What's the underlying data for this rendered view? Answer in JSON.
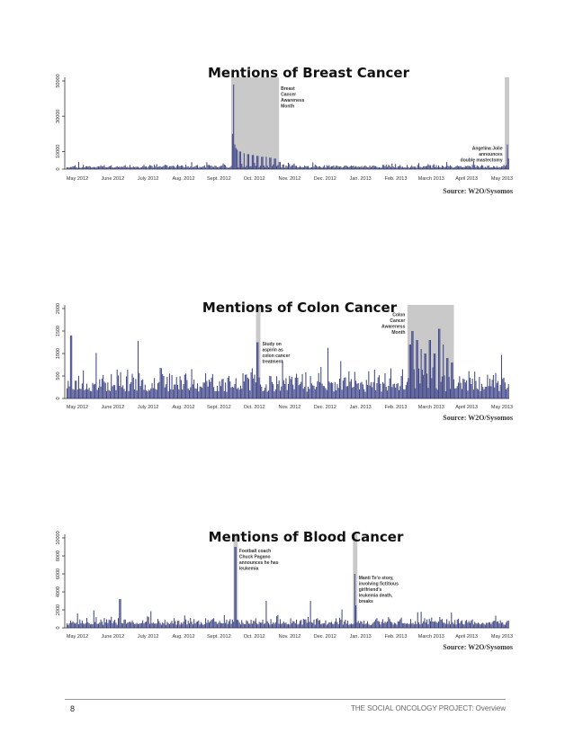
{
  "footer": {
    "page_number": "8",
    "doc_title": "THE SOCIAL ONCOLOGY PROJECT: Overview"
  },
  "colors": {
    "bar": "#40468a",
    "bar_stroke": "#5a62a8",
    "highlight": "#c9c9c9",
    "axis": "#333333"
  },
  "chart_data": [
    {
      "type": "bar",
      "title": "Mentions of Breast Cancer",
      "source": "Source: W2O/Sysomos",
      "ylim": [
        0,
        50000
      ],
      "yticks": [
        "0",
        "10000",
        "30000",
        "50000"
      ],
      "ytick_values": [
        0,
        10000,
        30000,
        50000
      ],
      "categories": [
        "May 2012",
        "June 2012",
        "July 2012",
        "Aug. 2012",
        "Sept. 2012",
        "Oct. 2012",
        "Nov. 2012",
        "Dec. 2012",
        "Jan. 2013",
        "Feb. 2013",
        "March 2013",
        "April 2013",
        "May 2013"
      ],
      "baseline": 2200,
      "noise": 1600,
      "seed": 11,
      "spikes": [
        [
          0.375,
          20000
        ],
        [
          0.376,
          48000
        ],
        [
          0.378,
          14000
        ],
        [
          0.38,
          12000
        ],
        [
          0.384,
          11000
        ],
        [
          0.39,
          10000
        ],
        [
          0.4,
          9000
        ],
        [
          0.41,
          8500
        ],
        [
          0.42,
          8000
        ],
        [
          0.43,
          7500
        ],
        [
          0.44,
          7000
        ],
        [
          0.45,
          7000
        ],
        [
          0.46,
          6500
        ],
        [
          0.47,
          6000
        ],
        [
          0.48,
          4000
        ],
        [
          0.995,
          14000
        ],
        [
          0.998,
          6000
        ]
      ],
      "highlights": [
        [
          0.372,
          0.48
        ],
        [
          0.99,
          1.0
        ]
      ],
      "annotations": [
        {
          "lines": [
            "Breast",
            "Cancer",
            "Awareness",
            "Month"
          ],
          "pos": 0.484,
          "y": 48000,
          "align": "start"
        },
        {
          "lines": [
            "Angelina Jolie",
            "announces",
            "double mastectomy"
          ],
          "pos": 0.985,
          "y": 14000,
          "align": "end"
        }
      ]
    },
    {
      "type": "bar",
      "title": "Mentions of Colon Cancer",
      "source": "Source: W2O/Sysomos",
      "ylim": [
        0,
        2000
      ],
      "yticks": [
        "0",
        "500",
        "1000",
        "1500",
        "2000"
      ],
      "ytick_values": [
        0,
        500,
        1000,
        1500,
        2000
      ],
      "categories": [
        "May 2012",
        "June 2012",
        "July 2012",
        "Aug. 2012",
        "Sept. 2012",
        "Oct. 2012",
        "Nov. 2012",
        "Dec. 2012",
        "Jan. 2013",
        "Feb. 2013",
        "March 2013",
        "April 2013",
        "May 2013"
      ],
      "baseline": 420,
      "noise": 420,
      "seed": 23,
      "spikes": [
        [
          0.01,
          1400
        ],
        [
          0.43,
          1250
        ],
        [
          0.775,
          1200
        ],
        [
          0.78,
          1500
        ],
        [
          0.79,
          1300
        ],
        [
          0.8,
          1100
        ],
        [
          0.81,
          1000
        ],
        [
          0.82,
          1300
        ],
        [
          0.83,
          1000
        ],
        [
          0.84,
          1550
        ],
        [
          0.85,
          1200
        ],
        [
          0.86,
          900
        ],
        [
          0.87,
          800
        ]
      ],
      "highlights": [
        [
          0.428,
          0.438
        ],
        [
          0.77,
          0.875
        ]
      ],
      "annotations": [
        {
          "lines": [
            "Study on",
            "aspirin as",
            "colon cancer",
            "treatment"
          ],
          "pos": 0.442,
          "y": 1300,
          "align": "start"
        },
        {
          "lines": [
            "Colon",
            "Cancer",
            "Awareness",
            "Month"
          ],
          "pos": 0.765,
          "y": 1950,
          "align": "end"
        }
      ]
    },
    {
      "type": "bar",
      "title": "Mentions of Blood Cancer",
      "source": "Source: W2O/Sysomos",
      "ylim": [
        0,
        10000
      ],
      "yticks": [
        "0",
        "2000",
        "4000",
        "6000",
        "8000",
        "10000"
      ],
      "ytick_values": [
        0,
        2000,
        4000,
        6000,
        8000,
        10000
      ],
      "categories": [
        "May 2012",
        "June 2012",
        "July 2012",
        "Aug. 2012",
        "Sept. 2012",
        "Oct. 2012",
        "Nov. 2012",
        "Dec. 2012",
        "Jan. 2013",
        "Feb. 2013",
        "March 2013",
        "April 2013",
        "May 2013"
      ],
      "baseline": 900,
      "noise": 700,
      "seed": 37,
      "spikes": [
        [
          0.38,
          9000
        ],
        [
          0.381,
          3000
        ],
        [
          0.65,
          6000
        ],
        [
          0.651,
          2500
        ],
        [
          0.12,
          3200
        ],
        [
          0.55,
          3000
        ],
        [
          0.45,
          3000
        ]
      ],
      "highlights": [
        [
          0.377,
          0.387
        ],
        [
          0.647,
          0.657
        ]
      ],
      "annotations": [
        {
          "lines": [
            "Football coach",
            "Chuck Pagano",
            "announces he has",
            "leukemia"
          ],
          "pos": 0.39,
          "y": 9000,
          "align": "start"
        },
        {
          "lines": [
            "Manti Te'o story,",
            "involving fictitious",
            "girlfriend's",
            "leukemia death,",
            "breaks"
          ],
          "pos": 0.66,
          "y": 6000,
          "align": "start"
        }
      ]
    }
  ]
}
